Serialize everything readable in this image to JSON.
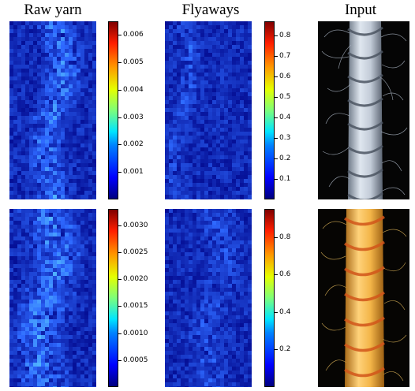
{
  "titles": {
    "raw_yarn": "Raw yarn",
    "flyaways": "Flyaways",
    "input": "Input"
  },
  "rows": [
    {
      "raw_yarn_colorbar": {
        "ticks": [
          "0.006",
          "0.005",
          "0.004",
          "0.003",
          "0.002",
          "0.001"
        ],
        "tick_values": [
          0.006,
          0.005,
          0.004,
          0.003,
          0.002,
          0.001
        ],
        "range": [
          0.0,
          0.0065
        ]
      },
      "flyaways_colorbar": {
        "ticks": [
          "0.8",
          "0.7",
          "0.6",
          "0.5",
          "0.4",
          "0.3",
          "0.2",
          "0.1"
        ],
        "tick_values": [
          0.8,
          0.7,
          0.6,
          0.5,
          0.4,
          0.3,
          0.2,
          0.1
        ],
        "range": [
          0.0,
          0.87
        ]
      },
      "input_image": "white-twisted-rope-on-black"
    },
    {
      "raw_yarn_colorbar": {
        "ticks": [
          "0.0030",
          "0.0025",
          "0.0020",
          "0.0015",
          "0.0010",
          "0.0005"
        ],
        "tick_values": [
          0.003,
          0.0025,
          0.002,
          0.0015,
          0.001,
          0.0005
        ],
        "range": [
          0.0,
          0.0033
        ]
      },
      "flyaways_colorbar": {
        "ticks": [
          "0.8",
          "0.6",
          "0.4",
          "0.2"
        ],
        "tick_values": [
          0.8,
          0.6,
          0.4,
          0.2
        ],
        "range": [
          0.0,
          0.95
        ]
      },
      "input_image": "yellow-twisted-rope-on-black"
    }
  ],
  "colors": {
    "heatmap_base": "#0a18b8",
    "heatmap_dark": "#0610a0",
    "heatmap_bright": "#3a5cff",
    "rope_white": "#c9d3e0",
    "rope_yellow": "#f0b040"
  }
}
